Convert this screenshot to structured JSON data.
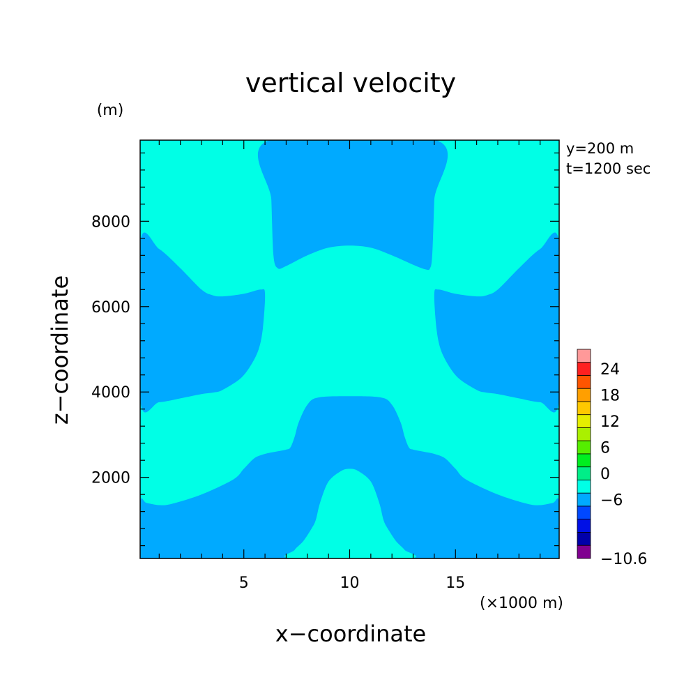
{
  "chart_data": {
    "type": "heatmap",
    "title": "vertical velocity",
    "xlabel": "x−coordinate",
    "ylabel": "z−coordinate",
    "x_unit": "(×1000 m)",
    "y_unit": "(m)",
    "annotations": [
      "y=200 m",
      "t=1200 sec"
    ],
    "xlim": [
      0.1,
      19.9
    ],
    "ylim": [
      100,
      9900
    ],
    "x_ticks": [
      5,
      10,
      15
    ],
    "y_ticks": [
      2000,
      4000,
      6000,
      8000
    ],
    "x_ticklabels": [
      "5",
      "10",
      "15"
    ],
    "y_ticklabels": [
      "2000",
      "4000",
      "6000",
      "8000"
    ],
    "x_minor_step": 1,
    "y_minor_step": 400,
    "background_level": {
      "range": [
        0,
        3
      ],
      "color": "#00ffe6"
    },
    "regions": [
      {
        "level": [
          -3,
          0
        ],
        "color": "#00aaff",
        "boundary": [
          [
            6.2,
            9900
          ],
          [
            6.3,
            8500
          ],
          [
            6.4,
            7200
          ],
          [
            6.6,
            6900
          ],
          [
            7.0,
            6950
          ],
          [
            8.0,
            7200
          ],
          [
            9.0,
            7380
          ],
          [
            10.0,
            7430
          ],
          [
            11.0,
            7380
          ],
          [
            12.0,
            7200
          ],
          [
            13.0,
            6980
          ],
          [
            13.6,
            6870
          ],
          [
            13.8,
            6900
          ],
          [
            13.9,
            7200
          ],
          [
            14.0,
            8500
          ],
          [
            14.1,
            9900
          ]
        ]
      },
      {
        "level": [
          -3,
          0
        ],
        "color": "#00aaff",
        "boundary": [
          [
            0.1,
            7500
          ],
          [
            1.0,
            7350
          ],
          [
            2.0,
            6900
          ],
          [
            3.0,
            6400
          ],
          [
            3.5,
            6270
          ],
          [
            4.0,
            6240
          ],
          [
            5.0,
            6300
          ],
          [
            5.8,
            6400
          ],
          [
            6.0,
            6300
          ],
          [
            5.9,
            5500
          ],
          [
            5.7,
            5000
          ],
          [
            5.3,
            4600
          ],
          [
            4.8,
            4300
          ],
          [
            4.0,
            4050
          ],
          [
            3.6,
            3990
          ],
          [
            3.0,
            3950
          ],
          [
            2.0,
            3850
          ],
          [
            1.0,
            3760
          ],
          [
            0.1,
            3800
          ]
        ]
      },
      {
        "level": [
          -3,
          0
        ],
        "color": "#00aaff",
        "boundary": [
          [
            19.9,
            7500
          ],
          [
            19.0,
            7350
          ],
          [
            18.0,
            6900
          ],
          [
            17.0,
            6400
          ],
          [
            16.5,
            6270
          ],
          [
            16.0,
            6240
          ],
          [
            15.0,
            6300
          ],
          [
            14.2,
            6400
          ],
          [
            14.0,
            6300
          ],
          [
            14.1,
            5500
          ],
          [
            14.3,
            5000
          ],
          [
            14.7,
            4600
          ],
          [
            15.2,
            4300
          ],
          [
            16.0,
            4050
          ],
          [
            16.4,
            3990
          ],
          [
            17.0,
            3950
          ],
          [
            18.0,
            3850
          ],
          [
            19.0,
            3760
          ],
          [
            19.9,
            3800
          ]
        ]
      },
      {
        "level": [
          -3,
          0
        ],
        "color": "#00aaff",
        "boundary": [
          [
            0.1,
            100
          ],
          [
            19.9,
            100
          ],
          [
            19.9,
            1420
          ],
          [
            19.6,
            1400
          ],
          [
            19.0,
            1350
          ],
          [
            18.4,
            1380
          ],
          [
            17.0,
            1600
          ],
          [
            15.5,
            1950
          ],
          [
            15.0,
            2200
          ],
          [
            14.5,
            2450
          ],
          [
            14.0,
            2550
          ],
          [
            13.5,
            2600
          ],
          [
            13.0,
            2650
          ],
          [
            12.8,
            2700
          ],
          [
            12.6,
            2950
          ],
          [
            12.4,
            3300
          ],
          [
            12.0,
            3700
          ],
          [
            11.5,
            3870
          ],
          [
            10.0,
            3900
          ],
          [
            8.5,
            3870
          ],
          [
            8.0,
            3700
          ],
          [
            7.6,
            3300
          ],
          [
            7.4,
            2950
          ],
          [
            7.2,
            2700
          ],
          [
            7.0,
            2650
          ],
          [
            6.5,
            2600
          ],
          [
            6.0,
            2550
          ],
          [
            5.5,
            2450
          ],
          [
            5.0,
            2200
          ],
          [
            4.5,
            1950
          ],
          [
            3.0,
            1600
          ],
          [
            1.6,
            1380
          ],
          [
            1.0,
            1350
          ],
          [
            0.4,
            1400
          ],
          [
            0.1,
            1420
          ]
        ]
      },
      {
        "level": [
          0,
          3
        ],
        "color": "#00ffe6",
        "boundary": [
          [
            7.3,
            100
          ],
          [
            7.4,
            300
          ],
          [
            7.8,
            500
          ],
          [
            8.2,
            800
          ],
          [
            8.4,
            1000
          ],
          [
            8.6,
            1400
          ],
          [
            9.0,
            1900
          ],
          [
            9.6,
            2150
          ],
          [
            10.0,
            2200
          ],
          [
            10.4,
            2150
          ],
          [
            11.0,
            1900
          ],
          [
            11.4,
            1400
          ],
          [
            11.6,
            1000
          ],
          [
            11.8,
            800
          ],
          [
            12.2,
            500
          ],
          [
            12.6,
            300
          ],
          [
            12.8,
            100
          ]
        ]
      }
    ],
    "colorbar": {
      "labels": [
        "24",
        "18",
        "12",
        "6",
        "0",
        "−6",
        "−10.6"
      ],
      "colors_top_to_bottom": [
        "#ff9999",
        "#ff2020",
        "#ff5500",
        "#ff9f00",
        "#ffc800",
        "#e6ee00",
        "#aaf000",
        "#55ee00",
        "#00ee20",
        "#00ee88",
        "#00ffe6",
        "#00aaff",
        "#0048ff",
        "#0010e6",
        "#0000aa",
        "#800090"
      ]
    }
  }
}
